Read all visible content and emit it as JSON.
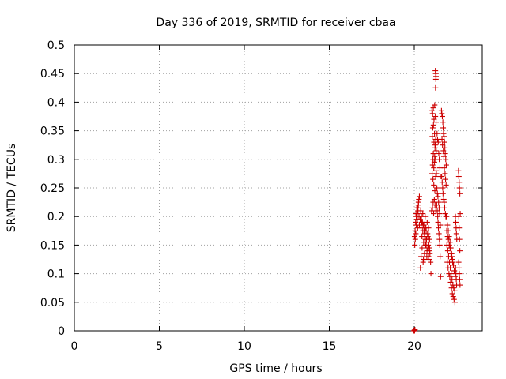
{
  "chart_data": {
    "type": "scatter",
    "title": "Day 336 of 2019, SRMTID for receiver cbaa",
    "xlabel": "GPS time / hours",
    "ylabel": "SRMTID / TECUs",
    "xlim": [
      0,
      24
    ],
    "ylim": [
      0,
      0.5
    ],
    "xticks": [
      0,
      5,
      10,
      15,
      20
    ],
    "xtick_labels": [
      "0",
      "5",
      "10",
      "15",
      "20"
    ],
    "yticks": [
      0,
      0.05,
      0.1,
      0.15,
      0.2,
      0.25,
      0.3,
      0.35,
      0.4,
      0.45,
      0.5
    ],
    "ytick_labels": [
      "0",
      "0.05",
      "0.1",
      "0.15",
      "0.2",
      "0.25",
      "0.3",
      "0.35",
      "0.4",
      "0.45",
      "0.5"
    ],
    "grid": true,
    "marker": "plus",
    "marker_color": "#cc0000",
    "series": [
      {
        "name": "SRMTID",
        "x": [
          19.98,
          20.0,
          20.02,
          20.04,
          20.02,
          20.05,
          20.08,
          20.1,
          20.12,
          20.15,
          20.18,
          20.2,
          20.22,
          20.25,
          20.28,
          20.3,
          20.03,
          20.06,
          20.09,
          20.12,
          20.15,
          20.18,
          20.21,
          20.24,
          20.27,
          20.3,
          20.35,
          20.4,
          20.45,
          20.5,
          20.55,
          20.6,
          20.65,
          20.7,
          20.75,
          20.8,
          20.85,
          20.9,
          20.38,
          20.42,
          20.48,
          20.52,
          20.58,
          20.62,
          20.68,
          20.72,
          20.78,
          20.82,
          20.88,
          20.4,
          20.46,
          20.54,
          20.6,
          20.66,
          20.74,
          20.8,
          20.86,
          20.92,
          20.96,
          20.44,
          20.5,
          20.56,
          20.64,
          20.7,
          20.76,
          20.84,
          20.9,
          20.36,
          20.52,
          20.68,
          20.84,
          20.98,
          21.02,
          21.05,
          21.08,
          21.1,
          21.12,
          21.15,
          21.18,
          21.2,
          21.22,
          21.25,
          21.28,
          21.3,
          21.06,
          21.09,
          21.13,
          21.16,
          21.19,
          21.23,
          21.26,
          21.29,
          21.04,
          21.08,
          21.12,
          21.16,
          21.2,
          21.24,
          21.28,
          21.07,
          21.11,
          21.14,
          21.18,
          21.22,
          21.27,
          21.1,
          21.15,
          21.21,
          21.26,
          21.24,
          21.26,
          21.28,
          21.27,
          21.25,
          21.32,
          21.35,
          21.38,
          21.4,
          21.42,
          21.45,
          21.48,
          21.5,
          21.52,
          21.55,
          21.33,
          21.36,
          21.39,
          21.43,
          21.46,
          21.49,
          21.53,
          21.34,
          21.37,
          21.41,
          21.44,
          21.47,
          21.51,
          21.54,
          21.6,
          21.62,
          21.65,
          21.68,
          21.7,
          21.72,
          21.75,
          21.78,
          21.8,
          21.82,
          21.85,
          21.88,
          21.61,
          21.64,
          21.67,
          21.69,
          21.73,
          21.76,
          21.79,
          21.83,
          21.86,
          21.63,
          21.66,
          21.71,
          21.74,
          21.77,
          21.81,
          21.84,
          21.87,
          21.9,
          21.95,
          22.0,
          22.05,
          22.1,
          22.15,
          22.2,
          22.25,
          22.3,
          22.35,
          22.4,
          21.92,
          21.97,
          22.02,
          22.07,
          22.12,
          22.17,
          22.22,
          22.27,
          22.32,
          22.38,
          21.94,
          21.99,
          22.04,
          22.09,
          22.14,
          22.19,
          22.24,
          22.29,
          22.34,
          22.39,
          21.91,
          21.96,
          22.01,
          22.06,
          22.11,
          22.16,
          22.21,
          22.26,
          22.31,
          22.36,
          22.42,
          22.44,
          22.46,
          22.48,
          22.5,
          22.43,
          22.45,
          22.47,
          22.49,
          22.6,
          22.62,
          22.64,
          22.66,
          22.68,
          22.7,
          22.61,
          22.63,
          22.65,
          22.67,
          22.69,
          22.62,
          22.64,
          22.66,
          22.68
        ],
        "y": [
          0.0,
          0.001,
          0.0,
          0.002,
          0.165,
          0.175,
          0.19,
          0.205,
          0.2,
          0.215,
          0.195,
          0.18,
          0.21,
          0.225,
          0.2,
          0.185,
          0.15,
          0.16,
          0.17,
          0.185,
          0.195,
          0.205,
          0.215,
          0.22,
          0.23,
          0.235,
          0.195,
          0.18,
          0.165,
          0.175,
          0.155,
          0.17,
          0.16,
          0.15,
          0.14,
          0.165,
          0.155,
          0.145,
          0.21,
          0.2,
          0.19,
          0.185,
          0.175,
          0.165,
          0.18,
          0.16,
          0.17,
          0.15,
          0.14,
          0.13,
          0.145,
          0.125,
          0.135,
          0.15,
          0.13,
          0.145,
          0.125,
          0.135,
          0.12,
          0.19,
          0.205,
          0.185,
          0.2,
          0.175,
          0.19,
          0.18,
          0.16,
          0.11,
          0.12,
          0.15,
          0.13,
          0.1,
          0.21,
          0.275,
          0.29,
          0.3,
          0.31,
          0.285,
          0.295,
          0.305,
          0.32,
          0.3,
          0.28,
          0.275,
          0.34,
          0.355,
          0.36,
          0.33,
          0.345,
          0.325,
          0.335,
          0.315,
          0.385,
          0.38,
          0.39,
          0.37,
          0.395,
          0.375,
          0.365,
          0.215,
          0.225,
          0.205,
          0.23,
          0.22,
          0.21,
          0.265,
          0.255,
          0.245,
          0.27,
          0.455,
          0.45,
          0.445,
          0.44,
          0.425,
          0.22,
          0.21,
          0.2,
          0.19,
          0.18,
          0.17,
          0.16,
          0.15,
          0.13,
          0.095,
          0.25,
          0.24,
          0.235,
          0.225,
          0.215,
          0.205,
          0.185,
          0.345,
          0.335,
          0.33,
          0.31,
          0.3,
          0.285,
          0.27,
          0.385,
          0.38,
          0.375,
          0.365,
          0.355,
          0.345,
          0.34,
          0.33,
          0.32,
          0.31,
          0.3,
          0.29,
          0.27,
          0.26,
          0.25,
          0.24,
          0.23,
          0.225,
          0.215,
          0.205,
          0.2,
          0.335,
          0.325,
          0.315,
          0.305,
          0.285,
          0.275,
          0.265,
          0.255,
          0.2,
          0.185,
          0.175,
          0.165,
          0.155,
          0.145,
          0.135,
          0.125,
          0.115,
          0.105,
          0.095,
          0.15,
          0.14,
          0.13,
          0.12,
          0.11,
          0.1,
          0.09,
          0.08,
          0.075,
          0.07,
          0.12,
          0.11,
          0.1,
          0.095,
          0.085,
          0.075,
          0.065,
          0.06,
          0.055,
          0.05,
          0.175,
          0.165,
          0.16,
          0.15,
          0.145,
          0.135,
          0.13,
          0.12,
          0.115,
          0.105,
          0.2,
          0.19,
          0.18,
          0.17,
          0.16,
          0.11,
          0.1,
          0.09,
          0.08,
          0.28,
          0.27,
          0.26,
          0.25,
          0.24,
          0.205,
          0.12,
          0.11,
          0.1,
          0.09,
          0.08,
          0.2,
          0.18,
          0.16,
          0.14
        ]
      }
    ]
  }
}
